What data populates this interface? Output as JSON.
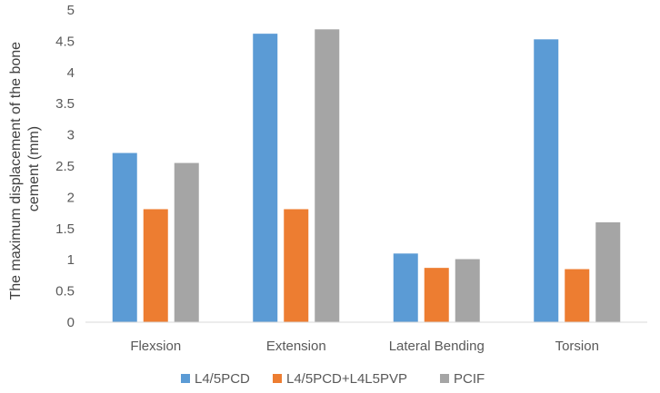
{
  "chart_data": {
    "type": "bar",
    "title": "",
    "xlabel": "",
    "ylabel": "The maximum displacement of the bone cement (mm)",
    "ylabel_lines": [
      "The maximum displacement of the bone",
      "cement (mm)"
    ],
    "categories": [
      "Flexsion",
      "Extension",
      "Lateral Bending",
      "Torsion"
    ],
    "ylim": [
      0,
      5
    ],
    "yticks": [
      "0",
      "0.5",
      "1",
      "1.5",
      "2",
      "2.5",
      "3",
      "3.5",
      "4",
      "4.5",
      "5"
    ],
    "grid": false,
    "legend_position": "bottom",
    "series": [
      {
        "name": "L4/5PCD",
        "color": "#5B9BD5",
        "values": [
          2.71,
          4.62,
          1.1,
          4.53
        ]
      },
      {
        "name": "L4/5PCD+L4L5PVP",
        "color": "#ED7D31",
        "values": [
          1.81,
          1.81,
          0.87,
          0.85
        ]
      },
      {
        "name": "PCIF",
        "color": "#A5A5A5",
        "values": [
          2.55,
          4.69,
          1.01,
          1.6
        ]
      }
    ]
  }
}
